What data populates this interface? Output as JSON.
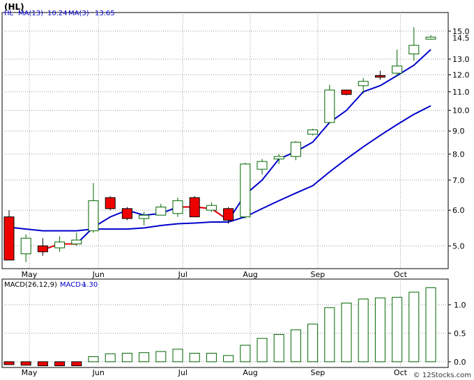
{
  "title": "(HL)",
  "watermark": "© 12Stocks.com",
  "chart_data": [
    {
      "type": "candlestick",
      "panel": "price",
      "y_scale": "log",
      "ylim": [
        4.45,
        16.5
      ],
      "legend": {
        "symbol": "HL",
        "ma13_label": "MA(13)",
        "ma13_value": "10.24",
        "ma3_label": "MA(3)",
        "ma3_value": "13.65"
      },
      "last_price_label": "14.5",
      "y_ticks": [
        "15.0",
        "13.0",
        "12.0",
        "11.0",
        "10.0",
        "9.0",
        "8.0",
        "7.0",
        "6.0",
        "5.0"
      ],
      "y_tick_values": [
        15,
        13,
        12,
        11,
        10,
        9,
        8,
        7,
        6,
        5
      ],
      "x_labels": [
        "May",
        "Jun",
        "Jul",
        "Aug",
        "Sep",
        "Oct"
      ],
      "x_label_positions": [
        1.2,
        5.3,
        10.3,
        14.3,
        18.3,
        23.2
      ],
      "candles": [
        {
          "open": 5.8,
          "high": 6.0,
          "low": 4.65,
          "close": 4.65
        },
        {
          "open": 4.8,
          "high": 5.3,
          "low": 4.6,
          "close": 5.2
        },
        {
          "open": 5.0,
          "high": 5.2,
          "low": 4.75,
          "close": 4.85
        },
        {
          "open": 4.95,
          "high": 5.25,
          "low": 4.85,
          "close": 5.1
        },
        {
          "open": 5.05,
          "high": 5.35,
          "low": 5.0,
          "close": 5.15
        },
        {
          "open": 5.4,
          "high": 6.9,
          "low": 5.35,
          "close": 6.3
        },
        {
          "open": 6.4,
          "high": 6.45,
          "low": 6.0,
          "close": 6.05
        },
        {
          "open": 6.05,
          "high": 6.1,
          "low": 5.7,
          "close": 5.75
        },
        {
          "open": 5.75,
          "high": 5.95,
          "low": 5.55,
          "close": 5.85
        },
        {
          "open": 5.85,
          "high": 6.2,
          "low": 5.85,
          "close": 6.1
        },
        {
          "open": 5.9,
          "high": 6.4,
          "low": 5.8,
          "close": 6.3
        },
        {
          "open": 6.4,
          "high": 6.45,
          "low": 5.8,
          "close": 5.8
        },
        {
          "open": 6.0,
          "high": 6.25,
          "low": 5.95,
          "close": 6.15
        },
        {
          "open": 6.05,
          "high": 6.1,
          "low": 5.6,
          "close": 5.7
        },
        {
          "open": 5.8,
          "high": 7.65,
          "low": 5.75,
          "close": 7.6
        },
        {
          "open": 7.4,
          "high": 7.8,
          "low": 7.2,
          "close": 7.7
        },
        {
          "open": 7.8,
          "high": 8.0,
          "low": 7.6,
          "close": 7.9
        },
        {
          "open": 7.9,
          "high": 8.55,
          "low": 7.75,
          "close": 8.5
        },
        {
          "open": 8.85,
          "high": 9.1,
          "low": 8.8,
          "close": 9.05
        },
        {
          "open": 9.4,
          "high": 11.4,
          "low": 9.35,
          "close": 11.1
        },
        {
          "open": 11.1,
          "high": 11.1,
          "low": 10.8,
          "close": 10.85
        },
        {
          "open": 11.35,
          "high": 11.8,
          "low": 10.9,
          "close": 11.6
        },
        {
          "open": 11.95,
          "high": 12.25,
          "low": 11.7,
          "close": 11.85
        },
        {
          "open": 12.1,
          "high": 13.65,
          "low": 11.9,
          "close": 12.55
        },
        {
          "open": 13.35,
          "high": 15.3,
          "low": 12.9,
          "close": 13.95
        },
        {
          "open": 14.4,
          "high": 14.7,
          "low": 14.35,
          "close": 14.55
        }
      ],
      "ma3": [
        null,
        null,
        4.9,
        5.05,
        5.05,
        5.5,
        5.8,
        6.0,
        5.85,
        5.9,
        6.1,
        6.1,
        6.05,
        5.7,
        6.5,
        7.0,
        7.8,
        8.1,
        8.5,
        9.4,
        10.0,
        11.0,
        11.35,
        11.95,
        12.6,
        13.65
      ],
      "ma3_red_segments": [
        [
          0,
          4
        ],
        [
          10,
          13
        ]
      ],
      "ma13": [
        5.5,
        5.45,
        5.4,
        5.4,
        5.4,
        5.45,
        5.45,
        5.45,
        5.48,
        5.55,
        5.6,
        5.62,
        5.65,
        5.65,
        5.8,
        6.05,
        6.3,
        6.55,
        6.8,
        7.3,
        7.8,
        8.3,
        8.8,
        9.3,
        9.8,
        10.24
      ]
    },
    {
      "type": "bar",
      "panel": "macd",
      "ylim": [
        -0.1,
        1.45
      ],
      "legend": {
        "label": "MACD(26,12,9)",
        "value_label": "MACD=",
        "value": "1.30"
      },
      "y_ticks": [
        "1.0",
        "0.5",
        "0.0"
      ],
      "y_tick_values": [
        1.0,
        0.5,
        0.0
      ],
      "x_labels": [
        "May",
        "Jun",
        "Jul",
        "Aug",
        "Sep",
        "Oct"
      ],
      "x_label_positions": [
        1.2,
        5.3,
        10.3,
        14.3,
        18.3,
        23.2
      ],
      "values": [
        -0.05,
        -0.06,
        -0.07,
        -0.07,
        -0.07,
        0.09,
        0.14,
        0.15,
        0.16,
        0.18,
        0.22,
        0.15,
        0.15,
        0.11,
        0.29,
        0.41,
        0.48,
        0.56,
        0.66,
        0.95,
        1.03,
        1.1,
        1.12,
        1.13,
        1.22,
        1.3
      ]
    }
  ],
  "colors": {
    "up_fill": "#ffffff",
    "up_border": "#006600",
    "down_fill": "#ee0000",
    "ma13_line": "#0000cc",
    "ma3_line": "#0000cc",
    "ma3_red": "#ee0000",
    "macd_positive": "#006600",
    "macd_negative": "#ee0000",
    "legend_text": "#0000cc",
    "grid": "#999999"
  }
}
